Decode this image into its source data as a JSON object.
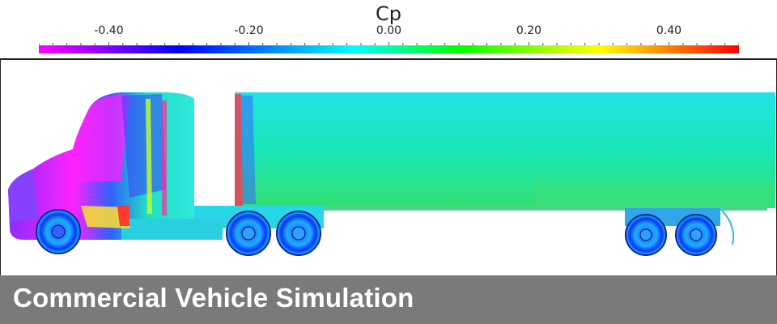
{
  "legend": {
    "title": "Cp",
    "ticks": [
      {
        "value": -0.4,
        "label": "-0.40"
      },
      {
        "value": -0.2,
        "label": "-0.20"
      },
      {
        "value": 0.0,
        "label": "0.00"
      },
      {
        "value": 0.2,
        "label": "0.20"
      },
      {
        "value": 0.4,
        "label": "0.40"
      }
    ],
    "range": [
      -0.5,
      0.5
    ],
    "colors": [
      "#ff00ff",
      "#0000ff",
      "#00ffff",
      "#00ff00",
      "#ffff00",
      "#ff0000"
    ]
  },
  "caption": {
    "text": "Commercial Vehicle Simulation",
    "background": "#7a7a7a"
  },
  "diagram": {
    "subject": "semi-truck-cp-contour",
    "components": [
      "cab",
      "trailer",
      "front-wheels",
      "tractor-rear-wheels",
      "trailer-wheels"
    ]
  }
}
